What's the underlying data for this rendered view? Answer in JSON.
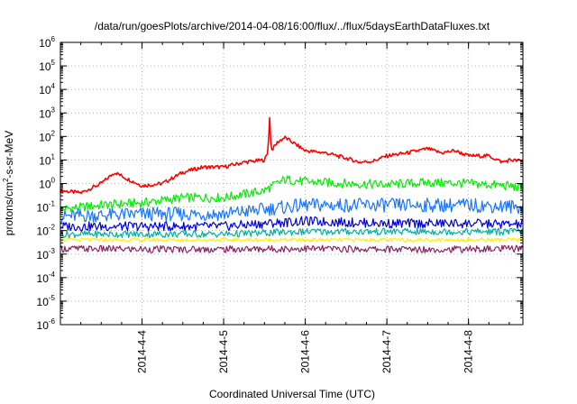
{
  "chart_data": {
    "type": "line",
    "title": "/data/run/goesPlots/archive/2014-04-08/16:00/flux/../flux/5daysEarthDataFluxes.txt",
    "xlabel": "Coordinated Universal Time (UTC)",
    "ylabel_parts": [
      "protons/cm",
      "2",
      "-s-sr-MeV"
    ],
    "y_scale": "log",
    "ylim": [
      1e-06,
      1000000.0
    ],
    "xlim": [
      "2014-04-03 00:00",
      "2014-04-08 16:00"
    ],
    "x_ticks": [
      "2014-4-4",
      "2014-4-5",
      "2014-4-6",
      "2014-4-7",
      "2014-4-8"
    ],
    "y_ticks": [
      {
        "base": "10",
        "exp": "-6"
      },
      {
        "base": "10",
        "exp": "-5"
      },
      {
        "base": "10",
        "exp": "-4"
      },
      {
        "base": "10",
        "exp": "-3"
      },
      {
        "base": "10",
        "exp": "-2"
      },
      {
        "base": "10",
        "exp": "-1"
      },
      {
        "base": "10",
        "exp": "0"
      },
      {
        "base": "10",
        "exp": "1"
      },
      {
        "base": "10",
        "exp": "2"
      },
      {
        "base": "10",
        "exp": "3"
      },
      {
        "base": "10",
        "exp": "4"
      },
      {
        "base": "10",
        "exp": "5"
      },
      {
        "base": "10",
        "exp": "6"
      }
    ],
    "grid": true,
    "series": [
      {
        "color": "#ff0000",
        "jitter": 0.08,
        "x": [
          "2014-04-03 00:00",
          "2014-04-03 06:00",
          "2014-04-03 12:00",
          "2014-04-03 16:00",
          "2014-04-03 20:00",
          "2014-04-04 00:00",
          "2014-04-04 06:00",
          "2014-04-04 12:00",
          "2014-04-04 18:00",
          "2014-04-05 00:00",
          "2014-04-05 06:00",
          "2014-04-05 12:00",
          "2014-04-05 13:00",
          "2014-04-05 13:30",
          "2014-04-05 14:00",
          "2014-04-05 16:00",
          "2014-04-05 18:00",
          "2014-04-05 20:00",
          "2014-04-06 00:00",
          "2014-04-06 06:00",
          "2014-04-06 12:00",
          "2014-04-06 16:00",
          "2014-04-06 20:00",
          "2014-04-07 00:00",
          "2014-04-07 06:00",
          "2014-04-07 12:00",
          "2014-04-07 16:00",
          "2014-04-07 20:00",
          "2014-04-08 00:00",
          "2014-04-08 06:00",
          "2014-04-08 10:00",
          "2014-04-08 12:00",
          "2014-04-08 16:00"
        ],
        "y": [
          0.5,
          0.4,
          1.0,
          3.0,
          1.5,
          0.8,
          1.0,
          3.0,
          5.0,
          5.0,
          8.0,
          10.0,
          20.0,
          700,
          25.0,
          60.0,
          90.0,
          60.0,
          25.0,
          20.0,
          12.0,
          8.0,
          9.0,
          15.0,
          20.0,
          30.0,
          20.0,
          25.0,
          15.0,
          15.0,
          8.0,
          10.0,
          9.0
        ]
      },
      {
        "color": "#00ee00",
        "jitter": 0.2,
        "x": [
          "2014-04-03 00:00",
          "2014-04-03 12:00",
          "2014-04-04 00:00",
          "2014-04-04 12:00",
          "2014-04-05 00:00",
          "2014-04-05 12:00",
          "2014-04-05 18:00",
          "2014-04-06 00:00",
          "2014-04-06 12:00",
          "2014-04-07 00:00",
          "2014-04-07 12:00",
          "2014-04-08 00:00",
          "2014-04-08 12:00",
          "2014-04-08 16:00"
        ],
        "y": [
          0.08,
          0.12,
          0.15,
          0.25,
          0.25,
          0.5,
          1.5,
          1.2,
          1.0,
          0.9,
          1.1,
          1.0,
          0.8,
          0.6
        ]
      },
      {
        "color": "#1a75ff",
        "jitter": 0.3,
        "x": [
          "2014-04-03 00:00",
          "2014-04-04 00:00",
          "2014-04-05 00:00",
          "2014-04-05 12:00",
          "2014-04-06 00:00",
          "2014-04-07 00:00",
          "2014-04-08 00:00",
          "2014-04-08 16:00"
        ],
        "y": [
          0.04,
          0.05,
          0.05,
          0.08,
          0.12,
          0.12,
          0.12,
          0.1
        ]
      },
      {
        "color": "#0000dd",
        "jitter": 0.2,
        "x": [
          "2014-04-03 00:00",
          "2014-04-04 00:00",
          "2014-04-05 00:00",
          "2014-04-05 12:00",
          "2014-04-06 00:00",
          "2014-04-07 00:00",
          "2014-04-08 00:00",
          "2014-04-08 16:00"
        ],
        "y": [
          0.015,
          0.015,
          0.015,
          0.02,
          0.025,
          0.02,
          0.02,
          0.018
        ]
      },
      {
        "color": "#00b3a0",
        "jitter": 0.15,
        "x": [
          "2014-04-03 00:00",
          "2014-04-04 00:00",
          "2014-04-05 00:00",
          "2014-04-06 00:00",
          "2014-04-07 00:00",
          "2014-04-08 00:00",
          "2014-04-08 16:00"
        ],
        "y": [
          0.007,
          0.007,
          0.007,
          0.009,
          0.009,
          0.009,
          0.009
        ]
      },
      {
        "color": "#ffee00",
        "jitter": 0.08,
        "x": [
          "2014-04-03 00:00",
          "2014-04-04 00:00",
          "2014-04-05 00:00",
          "2014-04-06 00:00",
          "2014-04-07 00:00",
          "2014-04-08 00:00",
          "2014-04-08 16:00"
        ],
        "y": [
          0.004,
          0.004,
          0.004,
          0.004,
          0.004,
          0.004,
          0.004
        ]
      },
      {
        "color": "#882266",
        "jitter": 0.15,
        "x": [
          "2014-04-03 00:00",
          "2014-04-04 00:00",
          "2014-04-05 00:00",
          "2014-04-06 00:00",
          "2014-04-07 00:00",
          "2014-04-08 00:00",
          "2014-04-08 16:00"
        ],
        "y": [
          0.0017,
          0.0016,
          0.0016,
          0.0017,
          0.0016,
          0.0016,
          0.0017
        ]
      }
    ]
  }
}
